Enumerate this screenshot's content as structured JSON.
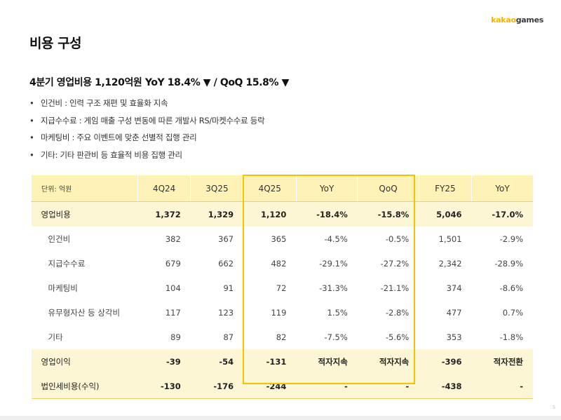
{
  "brand": {
    "part1": "kakao",
    "part2": "games"
  },
  "page_title": "비용 구성",
  "headline": "4분기 영업비용 1,120억원 YoY 18.4% ▼ / QoQ 15.8% ▼",
  "bullets": [
    "인건비 : 인력 구조 재편 및 효율화 지속",
    "지급수수료 : 게임 매출 구성 변동에 따른 개발사 RS/마켓수수료 등락",
    "마케팅비 : 주요 이벤트에 맞춘 선별적 집행 관리",
    "기타: 기타 판관비 등 효율적 비용 집행 관리"
  ],
  "table": {
    "unit_label": "단위: 억원",
    "columns": [
      "4Q24",
      "3Q25",
      "4Q25",
      "YoY",
      "QoQ",
      "FY25",
      "YoY"
    ],
    "rows": [
      {
        "label": "영업비용",
        "cells": [
          "1,372",
          "1,329",
          "1,120",
          "-18.4%",
          "-15.8%",
          "5,046",
          "-17.0%"
        ]
      },
      {
        "label": "인건비",
        "cells": [
          "382",
          "367",
          "365",
          "-4.5%",
          "-0.5%",
          "1,501",
          "-2.9%"
        ]
      },
      {
        "label": "지급수수료",
        "cells": [
          "679",
          "662",
          "482",
          "-29.1%",
          "-27.2%",
          "2,342",
          "-28.9%"
        ]
      },
      {
        "label": "마케팅비",
        "cells": [
          "104",
          "91",
          "72",
          "-31.3%",
          "-21.1%",
          "374",
          "-8.6%"
        ]
      },
      {
        "label": "유무형자산 등 상각비",
        "cells": [
          "117",
          "123",
          "119",
          "1.5%",
          "-2.8%",
          "477",
          "0.7%"
        ]
      },
      {
        "label": "기타",
        "cells": [
          "89",
          "87",
          "82",
          "-7.5%",
          "-5.6%",
          "353",
          "-1.8%"
        ]
      },
      {
        "label": "영업이익",
        "cells": [
          "-39",
          "-54",
          "-131",
          "적자지속",
          "적자지속",
          "-396",
          "적자전환"
        ]
      },
      {
        "label": "법인세비용(수익)",
        "cells": [
          "-130",
          "-176",
          "-244",
          "-",
          "-",
          "-438",
          "-"
        ]
      }
    ]
  },
  "page_number": "5",
  "colors": {
    "accent": "#f5c400",
    "header_bg": "#fef2b6",
    "major_row_bg": "#fdf6d4"
  }
}
